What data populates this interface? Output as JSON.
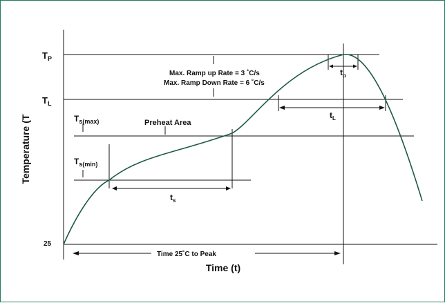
{
  "diagram": {
    "y_axis_title": "Temperature (T",
    "x_axis_title": "Time (t)",
    "tick_25": "25",
    "tp_main": "T",
    "tp_sub": "P",
    "tl_main": "T",
    "tl_sub": "L",
    "tsmax_main": "T",
    "tsmax_sub": "s(max)",
    "tsmin_main": "T",
    "tsmin_sub": "s(min)",
    "preheat_label": "Preheat Area",
    "ramp_up": "Max. Ramp up Rate = 3 ˚C/s",
    "ramp_down": "Max. Ramp Down Rate = 6 ˚C/s",
    "tp_time_main": "t",
    "tp_time_sub": "p",
    "tl_time_main": "t",
    "tl_time_sub": "L",
    "ts_time_main": "t",
    "ts_time_sub": "s",
    "time_to_peak": "Time 25˚C to Peak",
    "colors": {
      "profile": "#1d5a45",
      "lines": "#111111",
      "frame": "#1f7a5a"
    }
  }
}
